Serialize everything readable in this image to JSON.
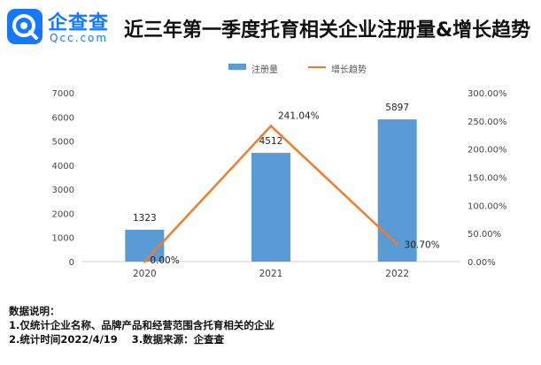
{
  "brand": {
    "name_cn": "企查查",
    "name_en": "Qcc.com",
    "color": "#1677ff"
  },
  "chart_data": {
    "type": "bar",
    "title": "近三年第一季度托育相关企业注册量&增长趋势",
    "categories": [
      "2020",
      "2021",
      "2022"
    ],
    "series": [
      {
        "name": "注册量",
        "kind": "bar",
        "axis": "left",
        "color": "#5b9bd5",
        "values": [
          1323,
          4512,
          5897
        ],
        "labels": [
          "1323",
          "4512",
          "5897"
        ]
      },
      {
        "name": "增长趋势",
        "kind": "line",
        "axis": "right",
        "color": "#ed7d31",
        "values": [
          0.0,
          241.04,
          30.7
        ],
        "labels": [
          "0.00%",
          "241.04%",
          "30.70%"
        ]
      }
    ],
    "y_left": {
      "range": [
        0,
        7000
      ],
      "ticks": [
        "0",
        "1000",
        "2000",
        "3000",
        "4000",
        "5000",
        "6000",
        "7000"
      ]
    },
    "y_right": {
      "range": [
        0,
        300
      ],
      "ticks": [
        "0.00%",
        "50.00%",
        "100.00%",
        "150.00%",
        "200.00%",
        "250.00%",
        "300.00%"
      ]
    },
    "grid": false,
    "legend_position": "top-center"
  },
  "notes": {
    "heading": "数据说明：",
    "line1": "1.仅统计企业名称、品牌产品和经营范围含托育相关的企业",
    "line2": "2.统计时间2022/4/19    3.数据来源：企查查"
  }
}
